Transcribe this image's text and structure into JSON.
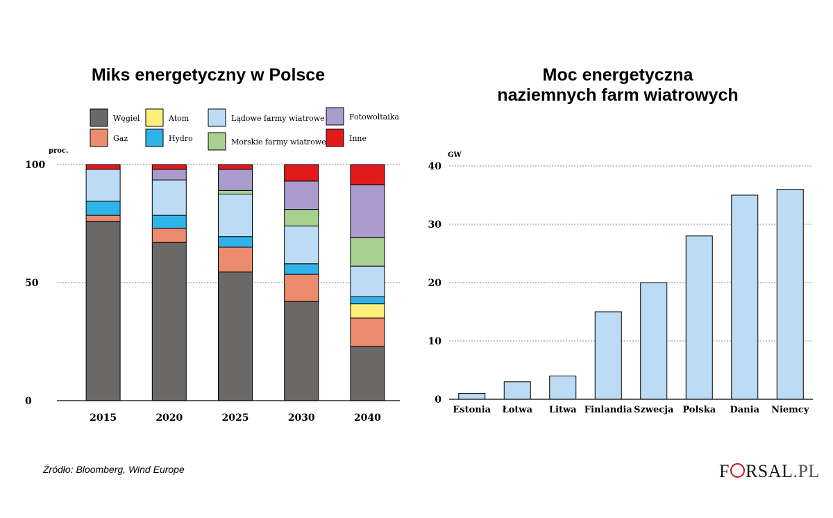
{
  "chart_data": [
    {
      "type": "bar",
      "stacked": true,
      "title": "Miks energetyczny w Polsce",
      "ylabel": "proc.",
      "categories": [
        "2015",
        "2020",
        "2025",
        "2030",
        "2040"
      ],
      "y_ticks": [
        "0",
        "50",
        "100"
      ],
      "ylim": [
        0,
        100
      ],
      "grid": "dotted horizontal at 50 and 100",
      "legend": "top",
      "series": [
        {
          "name": "Węgiel",
          "color": "#6b6868",
          "values": [
            76,
            67,
            54.5,
            42,
            23
          ]
        },
        {
          "name": "Gaz",
          "color": "#ec8c6e",
          "values": [
            2.5,
            6,
            10.5,
            11.5,
            12
          ]
        },
        {
          "name": "Atom",
          "color": "#fdf07a",
          "values": [
            0,
            0,
            0,
            0,
            6
          ]
        },
        {
          "name": "Hydro",
          "color": "#30b3e8",
          "values": [
            6,
            5.5,
            4.5,
            4.5,
            3
          ]
        },
        {
          "name": "Lądowe farmy wiatrowe",
          "color": "#bcdcf5",
          "values": [
            13.5,
            15,
            18,
            16,
            13
          ]
        },
        {
          "name": "Morskie farmy wiatrowe",
          "color": "#a9d18e",
          "values": [
            0,
            0,
            1.5,
            7,
            12
          ]
        },
        {
          "name": "Fotowoltaika",
          "color": "#a99ccc",
          "values": [
            0,
            4.5,
            9,
            12,
            22.5
          ]
        },
        {
          "name": "Inne",
          "color": "#e31a1c",
          "values": [
            2,
            2,
            2,
            7,
            8.5
          ]
        }
      ]
    },
    {
      "type": "bar",
      "title": "Moc energetyczna naziemnych farm wiatrowych",
      "ylabel": "GW",
      "categories": [
        "Estonia",
        "Łotwa",
        "Litwa",
        "Finlandia",
        "Szwecja",
        "Polska",
        "Dania",
        "Niemcy"
      ],
      "values": [
        1,
        3,
        4,
        15,
        20,
        28,
        35,
        36
      ],
      "y_ticks": [
        "0",
        "10",
        "20",
        "30",
        "40"
      ],
      "ylim": [
        0,
        40
      ],
      "grid": "dotted horizontal at 10, 20, 30, 40",
      "color": "#bcdcf5"
    }
  ],
  "footer": {
    "source": "Źródło:  Bloomberg, Wind Europe",
    "logo": {
      "part1": "F",
      "part2": "RSAL",
      "part3": ".PL"
    }
  }
}
